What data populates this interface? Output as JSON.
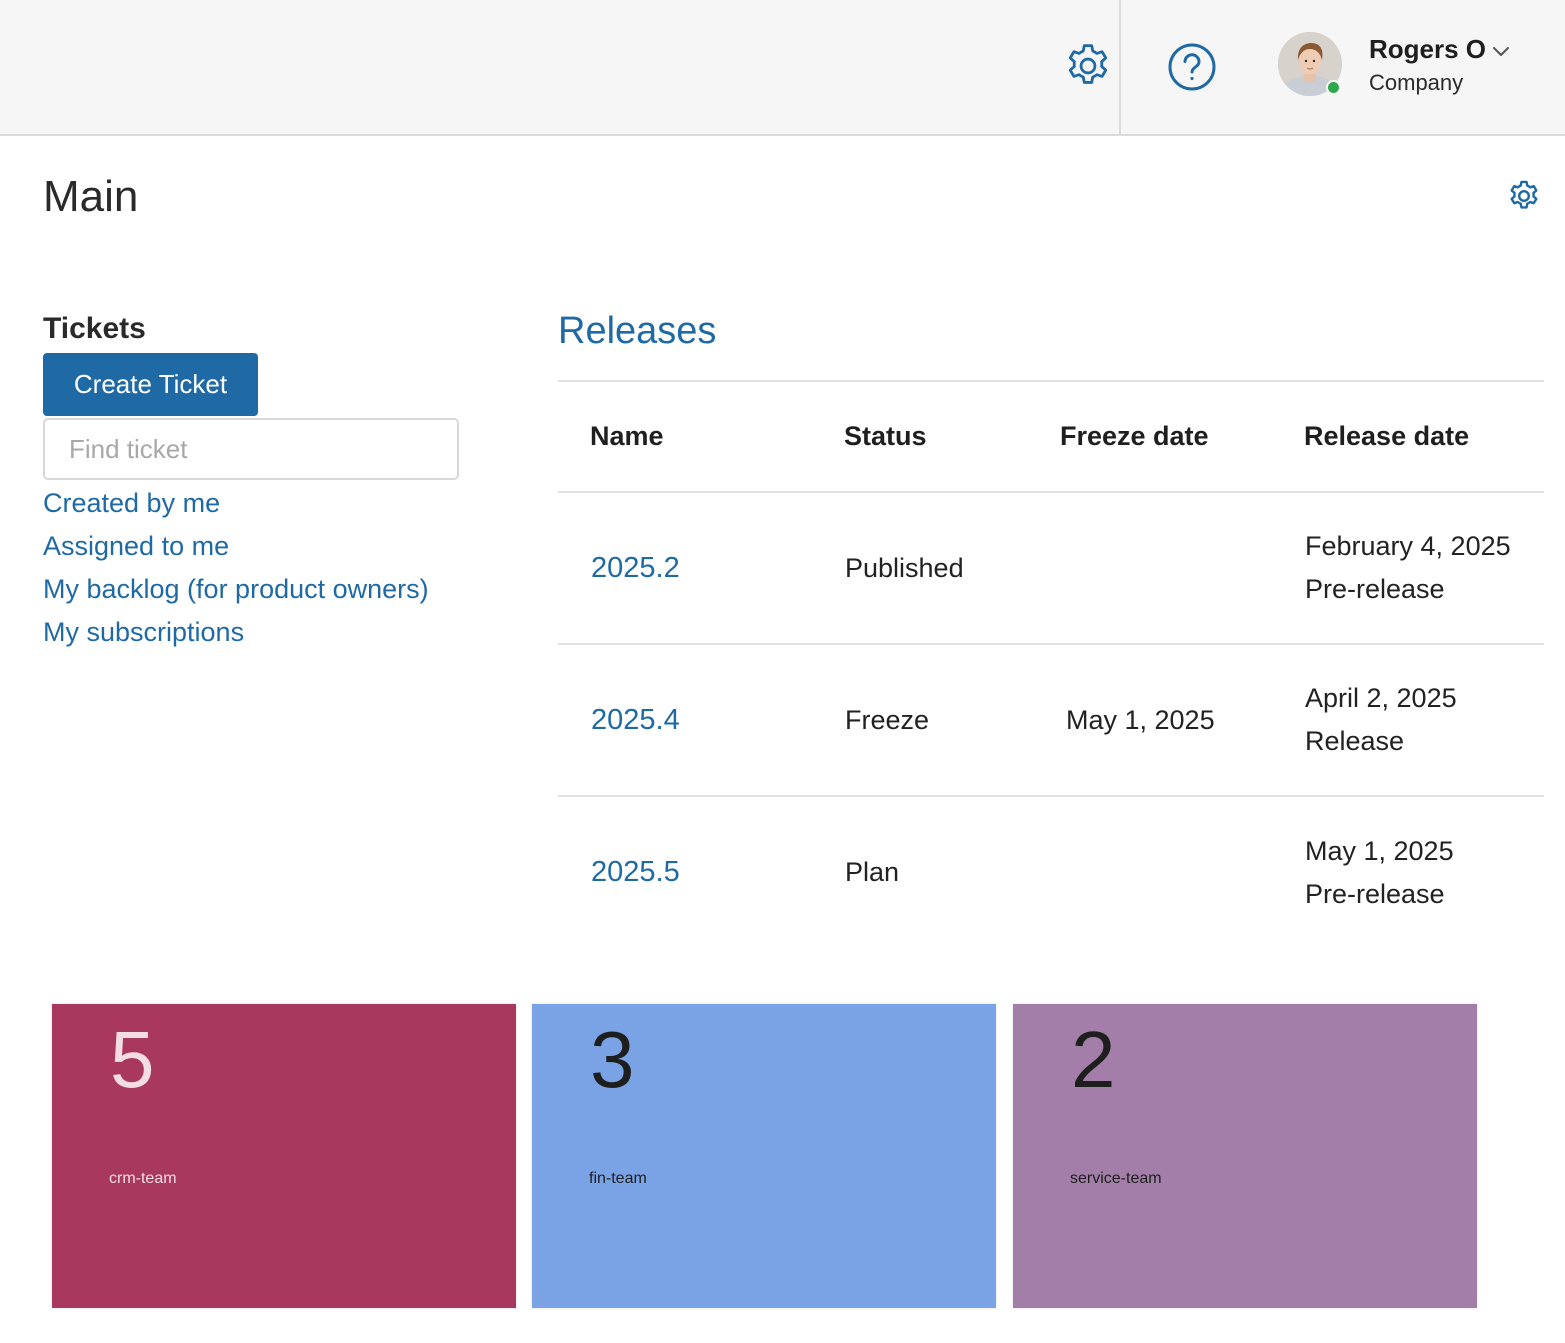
{
  "header": {
    "user": {
      "name": "Rogers O",
      "company": "Company",
      "online_color": "#2ea84a"
    },
    "icons": {
      "settings": "gear-icon",
      "help": "help-icon",
      "user_menu": "chevron-down-icon"
    }
  },
  "page": {
    "title": "Main",
    "settings_icon": "gear-icon"
  },
  "tickets": {
    "heading": "Tickets",
    "create_button": "Create Ticket",
    "search_placeholder": "Find ticket",
    "search_value": "",
    "links": [
      "Created by me",
      "Assigned to me",
      "My backlog (for product owners)",
      "My subscriptions"
    ]
  },
  "releases": {
    "heading": "Releases",
    "columns": {
      "name": "Name",
      "status": "Status",
      "freeze_date": "Freeze date",
      "release_date": "Release date"
    },
    "rows": [
      {
        "name": "2025.2",
        "status": "Published",
        "freeze_date": "",
        "release_date": "February 4, 2025",
        "release_type": "Pre-release"
      },
      {
        "name": "2025.4",
        "status": "Freeze",
        "freeze_date": "May 1, 2025",
        "release_date": "April 2, 2025",
        "release_type": "Release"
      },
      {
        "name": "2025.5",
        "status": "Plan",
        "freeze_date": "",
        "release_date": "May 1, 2025",
        "release_type": "Pre-release"
      }
    ]
  },
  "teams": [
    {
      "count": "5",
      "label": "crm-team",
      "bg": "#a8385d",
      "fg": "#f3dce4",
      "label_color": "#f3dce4"
    },
    {
      "count": "3",
      "label": "fin-team",
      "bg": "#7aa3e5",
      "fg": "#1e1e1e",
      "label_color": "#1e1e1e"
    },
    {
      "count": "2",
      "label": "service-team",
      "bg": "#a27ea8",
      "fg": "#1e1e1e",
      "label_color": "#1e1e1e"
    }
  ],
  "colors": {
    "accent": "#1f6aa5",
    "topbar_bg": "#f6f6f6"
  }
}
